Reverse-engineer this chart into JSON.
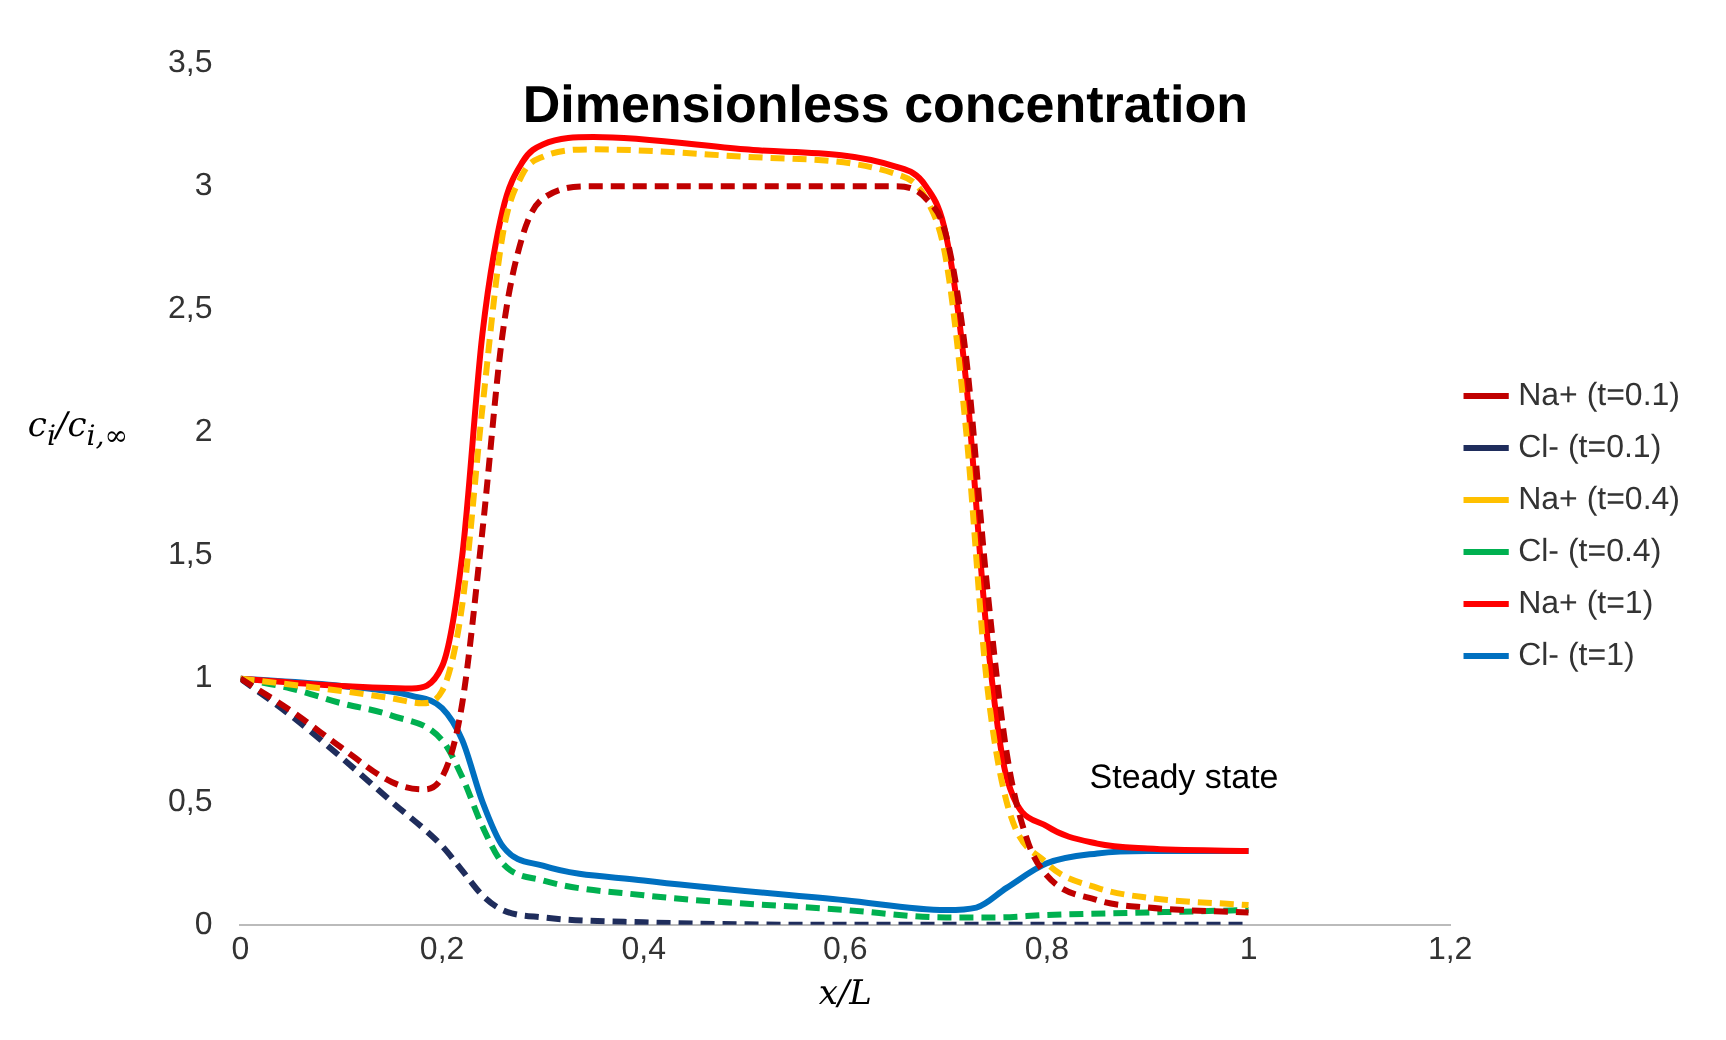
{
  "chart_data": {
    "type": "line",
    "title": "Dimensionless concentration",
    "xlabel": "x/L",
    "ylabel": "c$_{i}$/c$_{i,∞}$",
    "xlim": [
      0,
      1.2
    ],
    "xticks": [
      0,
      {
        "value": 0.2,
        "label": "0,2"
      },
      {
        "value": 0.4,
        "label": "0,4"
      },
      {
        "value": 0.6,
        "label": "0,6"
      },
      {
        "value": 0.8,
        "label": "0,8"
      },
      1,
      {
        "value": 1.2,
        "label": "1,2"
      }
    ],
    "ylim": [
      0,
      3.5
    ],
    "yticks": [
      0,
      {
        "value": 0.5,
        "label": "0,5"
      },
      1,
      {
        "value": 1.5,
        "label": "1,5"
      },
      2,
      {
        "value": 2.5,
        "label": "2,5"
      },
      3,
      {
        "value": 3.5,
        "label": "3,5"
      }
    ],
    "grid": false,
    "legend": "right",
    "marker": "none",
    "annotations": [
      "Steady state"
    ],
    "series": [
      {
        "name": "Na+ (t=0.1)",
        "color": "#c00000",
        "line_style": "dashed",
        "x": [
          0,
          0.05,
          0.1,
          0.15,
          0.18,
          0.2,
          0.22,
          0.24,
          0.26,
          0.28,
          0.3,
          0.35,
          0.5,
          0.65,
          0.68,
          0.7,
          0.72,
          0.74,
          0.76,
          0.78,
          0.8,
          0.85,
          0.9,
          1
        ],
        "values": [
          1,
          0.87,
          0.72,
          0.58,
          0.55,
          0.6,
          0.9,
          1.6,
          2.4,
          2.8,
          2.95,
          3.0,
          3.0,
          3.0,
          2.95,
          2.8,
          2.3,
          1.4,
          0.7,
          0.35,
          0.2,
          0.1,
          0.07,
          0.05
        ]
      },
      {
        "name": "Cl- (t=0.1)",
        "color": "#1f2d5c",
        "line_style": "dashed",
        "x": [
          0,
          0.05,
          0.1,
          0.15,
          0.2,
          0.22,
          0.24,
          0.26,
          0.3,
          0.4,
          0.6,
          1
        ],
        "values": [
          1,
          0.85,
          0.68,
          0.5,
          0.32,
          0.22,
          0.12,
          0.06,
          0.03,
          0.01,
          0,
          0
        ]
      },
      {
        "name": "Na+ (t=0.4)",
        "color": "#ffc000",
        "line_style": "dashed",
        "x": [
          0,
          0.1,
          0.15,
          0.18,
          0.2,
          0.22,
          0.24,
          0.26,
          0.28,
          0.3,
          0.35,
          0.5,
          0.65,
          0.68,
          0.7,
          0.72,
          0.74,
          0.76,
          0.8,
          0.85,
          0.9,
          1
        ],
        "values": [
          1,
          0.95,
          0.92,
          0.9,
          0.95,
          1.3,
          2.1,
          2.8,
          3.05,
          3.12,
          3.15,
          3.12,
          3.05,
          2.95,
          2.7,
          2.0,
          1.0,
          0.5,
          0.25,
          0.15,
          0.11,
          0.08
        ]
      },
      {
        "name": "Cl- (t=0.4)",
        "color": "#00b050",
        "line_style": "dashed",
        "x": [
          0,
          0.05,
          0.1,
          0.15,
          0.2,
          0.22,
          0.24,
          0.26,
          0.3,
          0.4,
          0.6,
          0.7,
          0.75,
          0.8,
          0.9,
          1
        ],
        "values": [
          1,
          0.96,
          0.9,
          0.85,
          0.75,
          0.6,
          0.4,
          0.25,
          0.18,
          0.12,
          0.06,
          0.03,
          0.03,
          0.04,
          0.05,
          0.06
        ]
      },
      {
        "name": "Na+ (t=1)",
        "color": "#ff0000",
        "line_style": "solid",
        "x": [
          0,
          0.1,
          0.17,
          0.2,
          0.22,
          0.24,
          0.26,
          0.28,
          0.3,
          0.35,
          0.5,
          0.65,
          0.68,
          0.7,
          0.72,
          0.74,
          0.76,
          0.8,
          0.85,
          0.9,
          1
        ],
        "values": [
          1,
          0.97,
          0.96,
          1.05,
          1.5,
          2.4,
          2.9,
          3.1,
          3.17,
          3.2,
          3.15,
          3.08,
          3.0,
          2.8,
          2.2,
          1.2,
          0.6,
          0.4,
          0.33,
          0.31,
          0.3
        ]
      },
      {
        "name": "Cl- (t=1)",
        "color": "#0070c0",
        "line_style": "solid",
        "x": [
          0,
          0.1,
          0.17,
          0.2,
          0.22,
          0.24,
          0.26,
          0.3,
          0.4,
          0.6,
          0.7,
          0.73,
          0.76,
          0.8,
          0.85,
          0.9,
          1
        ],
        "values": [
          1,
          0.97,
          0.93,
          0.88,
          0.75,
          0.5,
          0.32,
          0.24,
          0.18,
          0.1,
          0.06,
          0.07,
          0.15,
          0.25,
          0.29,
          0.3,
          0.3
        ]
      }
    ]
  }
}
